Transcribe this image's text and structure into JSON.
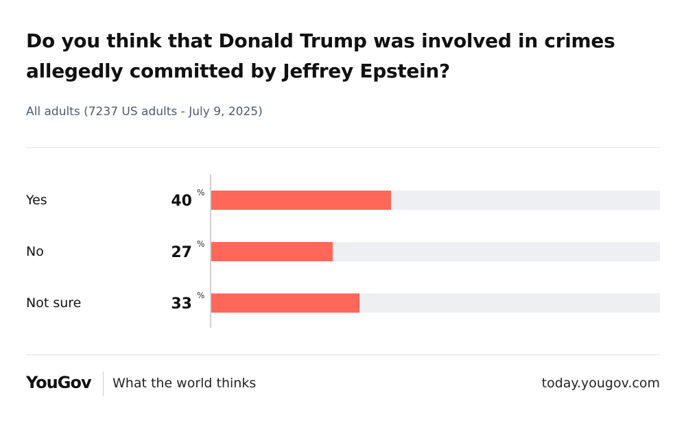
{
  "chart_data": {
    "type": "bar",
    "orientation": "horizontal",
    "title": "Do you think that Donald Trump was involved in crimes allegedly committed by Jeffrey Epstein?",
    "subtitle": "All adults (7237 US adults - July 9, 2025)",
    "categories": [
      "Yes",
      "No",
      "Not sure"
    ],
    "values": [
      40,
      27,
      33
    ],
    "unit": "%",
    "xlim": [
      0,
      100
    ],
    "bar_color": "#ff6759",
    "track_color": "#eeeff3"
  },
  "footer": {
    "logo": "YouGov",
    "tagline": "What the world thinks",
    "site": "today.yougov.com"
  }
}
